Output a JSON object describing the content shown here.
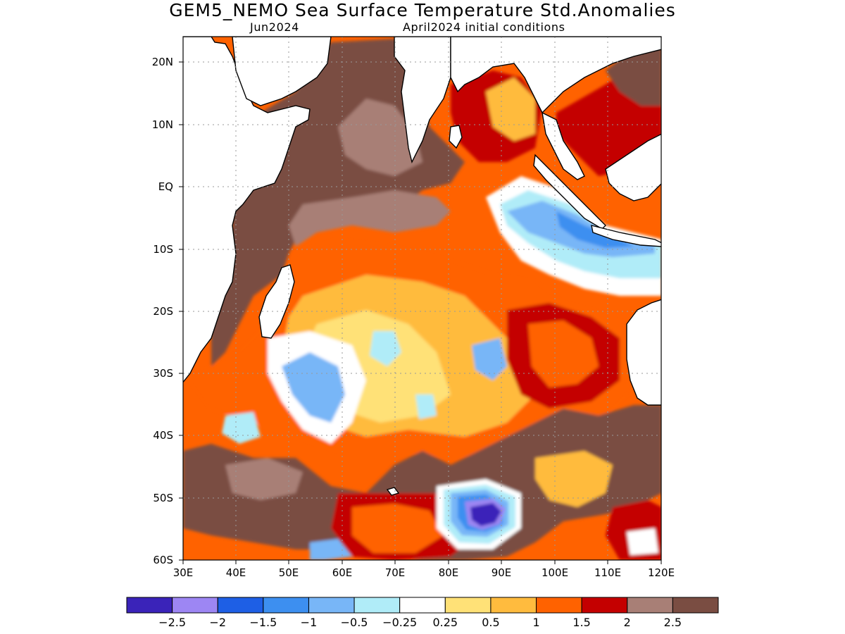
{
  "title": "GEM5_NEMO Sea Surface Temperature Std.Anomalies",
  "subtitle_left": "Jun2024",
  "subtitle_right": "April2024 initial conditions",
  "map": {
    "lon_range": [
      30,
      120
    ],
    "lat_range": [
      -60,
      24
    ],
    "lat_ticks": [
      "20N",
      "10N",
      "EQ",
      "10S",
      "20S",
      "30S",
      "40S",
      "50S",
      "60S"
    ],
    "lon_ticks": [
      "30E",
      "40E",
      "50E",
      "60E",
      "70E",
      "80E",
      "90E",
      "100E",
      "110E",
      "120E"
    ],
    "gridlines": "dotted",
    "land_color": "#ffffff",
    "coastline_color": "#000000"
  },
  "colorbar": {
    "colors": [
      "#3a23b9",
      "#9d86f3",
      "#1e5fe5",
      "#3d8ff0",
      "#78b6f7",
      "#b0ecf8",
      "#ffffff",
      "#ffe177",
      "#ffbb3e",
      "#ff6200",
      "#c40000",
      "#a87f76",
      "#7a4d42"
    ],
    "labels": [
      "−2.5",
      "−2",
      "−1.5",
      "−1",
      "−0.5",
      "−0.25",
      "0.25",
      "0.5",
      "1",
      "1.5",
      "2",
      "2.5"
    ]
  }
}
